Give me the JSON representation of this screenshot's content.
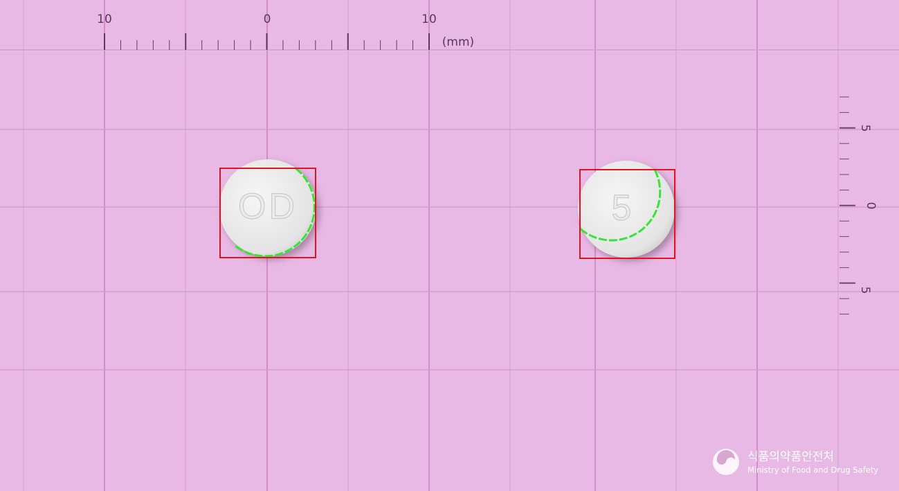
{
  "ruler_top": {
    "labels": [
      "10",
      "0",
      "10"
    ],
    "unit": "(mm)"
  },
  "ruler_right": {
    "labels": [
      "5",
      "0",
      "5"
    ]
  },
  "pills": [
    {
      "imprint": "OD"
    },
    {
      "imprint": "5"
    }
  ],
  "logo": {
    "korean": "식품의약품안전처",
    "english": "Ministry of Food and Drug Safety"
  }
}
